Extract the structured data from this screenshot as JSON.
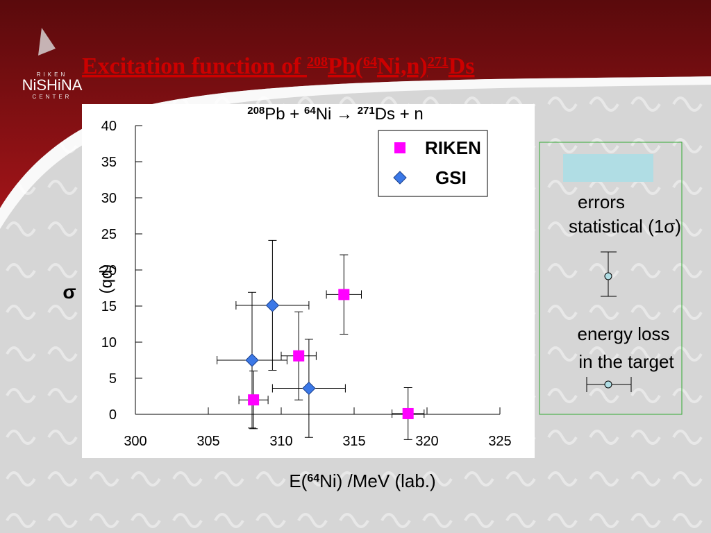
{
  "slide": {
    "title": [
      "Excitation function of ",
      "208",
      "Pb(",
      "64",
      "Ni,n)",
      "271",
      "Ds"
    ],
    "logo": [
      "RIKEN",
      "NiSHiNA",
      "CENTER"
    ],
    "notes": {
      "heading": "errors",
      "statistical": "statistical (1σ)",
      "energy_loss": [
        "energy loss",
        "in the target"
      ]
    }
  },
  "chart_data": {
    "type": "scatter",
    "title": [
      "208",
      "Pb + ",
      "64",
      "Ni → ",
      "271",
      "Ds + n"
    ],
    "x_label": [
      "E(",
      "64",
      "Ni) /MeV (lab.)"
    ],
    "y_label": [
      "σ",
      "(pb)"
    ],
    "xlim": [
      300,
      325
    ],
    "ylim": [
      0,
      40
    ],
    "xticks": [
      300,
      305,
      310,
      315,
      320,
      325
    ],
    "yticks": [
      0,
      5,
      10,
      15,
      20,
      25,
      30,
      35,
      40
    ],
    "legend": "upper right",
    "series": [
      {
        "name": "RIKEN",
        "marker": "square",
        "color": "#ff00ff",
        "x": [
          308.1,
          311.2,
          314.3,
          318.7
        ],
        "y": [
          2,
          8.1,
          16.6,
          0.1
        ],
        "xerr": [
          1.0,
          1.2,
          1.2,
          1.1
        ],
        "yerr": [
          4,
          6.1,
          5.5,
          3.6
        ]
      },
      {
        "name": "GSI",
        "marker": "diamond",
        "color": "#3b78e7",
        "x": [
          308.0,
          309.4,
          311.9
        ],
        "y": [
          7.5,
          15.1,
          3.6
        ],
        "xerr": [
          2.4,
          2.5,
          2.5
        ],
        "yerr": [
          9.4,
          9,
          6.8
        ]
      }
    ]
  }
}
